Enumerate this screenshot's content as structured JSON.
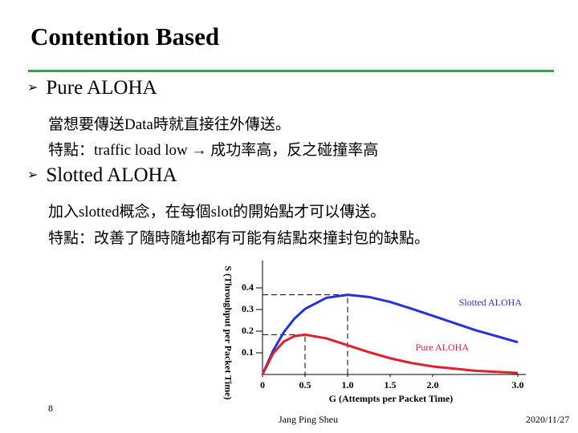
{
  "title": "Contention Based",
  "bullets": [
    {
      "label": "Pure ALOHA",
      "lines": [
        "當想要傳送Data時就直接往外傳送。",
        "特點：traffic load low → 成功率高，反之碰撞率高"
      ]
    },
    {
      "label": "Slotted ALOHA",
      "lines": [
        "加入slotted概念，在每個slot的開始點才可以傳送。",
        "特點：改善了隨時隨地都有可能有結點來撞封包的缺點。"
      ]
    }
  ],
  "chart_data": {
    "type": "line",
    "x_label": "G (Attempts per Packet Time)",
    "y_label": "S (Throughput per Packet Time)",
    "x": [
      0,
      0.125,
      0.25,
      0.375,
      0.5,
      0.75,
      1,
      1.25,
      1.5,
      1.75,
      2,
      2.5,
      3
    ],
    "series": [
      {
        "name": "Slotted ALOHA",
        "color": "#2233dd",
        "values": [
          0,
          0.11,
          0.195,
          0.258,
          0.303,
          0.354,
          0.368,
          0.358,
          0.335,
          0.304,
          0.271,
          0.205,
          0.149
        ]
      },
      {
        "name": "Pure ALOHA",
        "color": "#e0202c",
        "values": [
          0,
          0.097,
          0.152,
          0.177,
          0.184,
          0.167,
          0.135,
          0.103,
          0.075,
          0.053,
          0.037,
          0.017,
          0.007
        ]
      }
    ],
    "peaks": [
      {
        "x": 0.5,
        "y": 0.184
      },
      {
        "x": 1,
        "y": 0.368
      }
    ],
    "xlim": [
      0,
      3
    ],
    "ylim": [
      0,
      0.5
    ],
    "xticks": [
      0,
      0.5,
      {
        "value": 1,
        "label": "1.0"
      },
      1.5,
      {
        "value": 2,
        "label": "2.0"
      },
      {
        "value": 3,
        "label": "3.0"
      }
    ],
    "yticks": [
      0.1,
      0.2,
      0.3,
      0.4
    ]
  },
  "footer": {
    "page": "8",
    "author": "Jang Ping Sheu",
    "date": "2020/11/27"
  }
}
